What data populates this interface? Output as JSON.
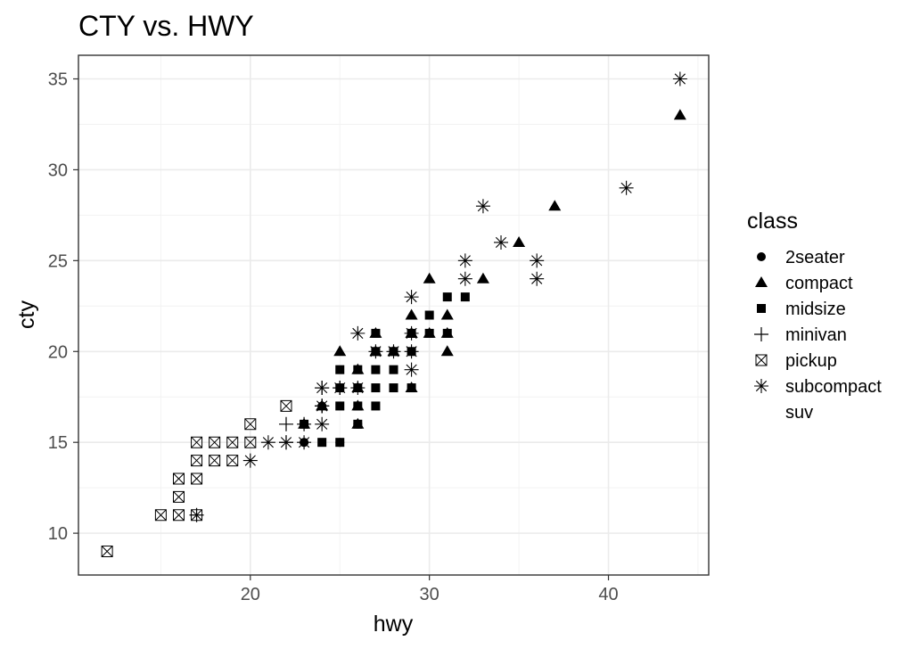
{
  "chart_data": {
    "type": "scatter",
    "title": "CTY vs. HWY",
    "xlabel": "hwy",
    "ylabel": "cty",
    "xlim": [
      10.4,
      45.6
    ],
    "ylim": [
      7.7,
      36.3
    ],
    "xticks": [
      20,
      30,
      40
    ],
    "yticks": [
      10,
      15,
      20,
      25,
      30,
      35
    ],
    "grid": true,
    "legend": {
      "title": "class",
      "position": "right",
      "entries": [
        "2seater",
        "compact",
        "midsize",
        "minivan",
        "pickup",
        "subcompact",
        "suv"
      ]
    },
    "series": [
      {
        "name": "2seater",
        "shape": "circle",
        "points": [
          [
            23,
            15
          ],
          [
            25,
            15
          ],
          [
            26,
            16
          ],
          [
            24,
            17
          ],
          [
            23,
            15
          ]
        ]
      },
      {
        "name": "compact",
        "shape": "triangle",
        "points": [
          [
            29,
            18
          ],
          [
            29,
            21
          ],
          [
            31,
            20
          ],
          [
            30,
            21
          ],
          [
            26,
            16
          ],
          [
            25,
            20
          ],
          [
            27,
            20
          ],
          [
            28,
            20
          ],
          [
            24,
            17
          ],
          [
            29,
            22
          ],
          [
            31,
            22
          ],
          [
            30,
            24
          ],
          [
            31,
            21
          ],
          [
            26,
            19
          ],
          [
            35,
            26
          ],
          [
            37,
            28
          ],
          [
            44,
            33
          ],
          [
            33,
            24
          ],
          [
            27,
            21
          ],
          [
            26,
            18
          ],
          [
            29,
            21
          ],
          [
            23,
            16
          ],
          [
            26,
            17
          ]
        ]
      },
      {
        "name": "midsize",
        "shape": "square",
        "points": [
          [
            25,
            19
          ],
          [
            26,
            18
          ],
          [
            27,
            17
          ],
          [
            26,
            16
          ],
          [
            25,
            15
          ],
          [
            29,
            18
          ],
          [
            29,
            21
          ],
          [
            26,
            19
          ],
          [
            31,
            21
          ],
          [
            27,
            18
          ],
          [
            25,
            17
          ],
          [
            30,
            21
          ],
          [
            29,
            20
          ],
          [
            28,
            19
          ],
          [
            28,
            18
          ],
          [
            31,
            23
          ],
          [
            30,
            22
          ],
          [
            32,
            23
          ],
          [
            23,
            16
          ],
          [
            24,
            15
          ],
          [
            27,
            19
          ],
          [
            26,
            17
          ],
          [
            27,
            21
          ],
          [
            28,
            20
          ],
          [
            25,
            18
          ],
          [
            27,
            20
          ]
        ]
      },
      {
        "name": "minivan",
        "shape": "plus",
        "points": [
          [
            24,
            18
          ],
          [
            24,
            17
          ],
          [
            22,
            16
          ],
          [
            17,
            11
          ],
          [
            24,
            17
          ],
          [
            23,
            16
          ],
          [
            22,
            15
          ],
          [
            24,
            17
          ],
          [
            25,
            18
          ]
        ]
      },
      {
        "name": "pickup",
        "shape": "square-x",
        "points": [
          [
            12,
            9
          ],
          [
            15,
            11
          ],
          [
            16,
            11
          ],
          [
            17,
            11
          ],
          [
            16,
            12
          ],
          [
            16,
            13
          ],
          [
            17,
            13
          ],
          [
            17,
            14
          ],
          [
            17,
            15
          ],
          [
            18,
            14
          ],
          [
            18,
            15
          ],
          [
            19,
            14
          ],
          [
            19,
            15
          ],
          [
            20,
            15
          ],
          [
            20,
            16
          ],
          [
            22,
            17
          ]
        ]
      },
      {
        "name": "subcompact",
        "shape": "asterisk",
        "points": [
          [
            44,
            35
          ],
          [
            41,
            29
          ],
          [
            33,
            28
          ],
          [
            34,
            26
          ],
          [
            36,
            25
          ],
          [
            32,
            25
          ],
          [
            36,
            24
          ],
          [
            32,
            24
          ],
          [
            29,
            23
          ],
          [
            26,
            21
          ],
          [
            29,
            20
          ],
          [
            29,
            19
          ],
          [
            24,
            18
          ],
          [
            25,
            18
          ],
          [
            26,
            18
          ],
          [
            24,
            16
          ],
          [
            22,
            15
          ],
          [
            21,
            15
          ],
          [
            20,
            14
          ],
          [
            24,
            17
          ],
          [
            27,
            20
          ],
          [
            28,
            20
          ],
          [
            29,
            21
          ],
          [
            23,
            15
          ]
        ]
      },
      {
        "name": "suv",
        "shape": "none",
        "points": []
      }
    ]
  }
}
